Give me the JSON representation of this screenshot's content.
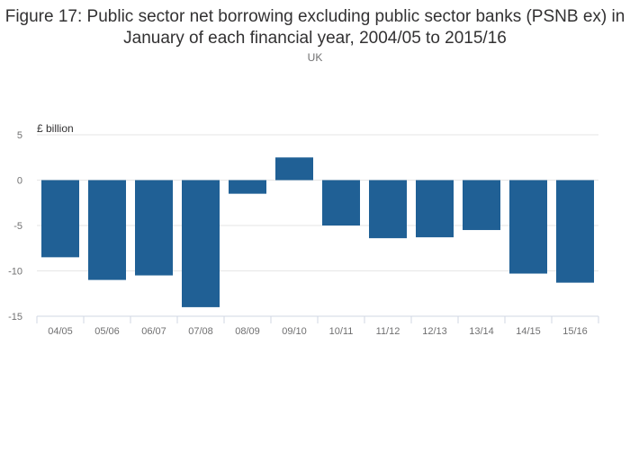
{
  "chart_data": {
    "type": "bar",
    "title": "Figure 17: Public sector net borrowing excluding public sector banks (PSNB ex) in January of each financial year, 2004/05 to 2015/16",
    "subtitle": "UK",
    "ylabel": "£ billion",
    "xlabel": "",
    "ylim": [
      -15,
      5
    ],
    "yticks": [
      5,
      0,
      -5,
      -10,
      -15
    ],
    "grid": true,
    "colors": {
      "bar": "#206095",
      "grid": "#e6e6e6",
      "axis": "#d0d7e3"
    },
    "categories": [
      "04/05",
      "05/06",
      "06/07",
      "07/08",
      "08/09",
      "09/10",
      "10/11",
      "11/12",
      "12/13",
      "13/14",
      "14/15",
      "15/16"
    ],
    "values": [
      -8.5,
      -11.0,
      -10.5,
      -14.0,
      -1.5,
      2.5,
      -5.0,
      -6.4,
      -6.3,
      -5.5,
      -10.3,
      -11.3
    ]
  }
}
